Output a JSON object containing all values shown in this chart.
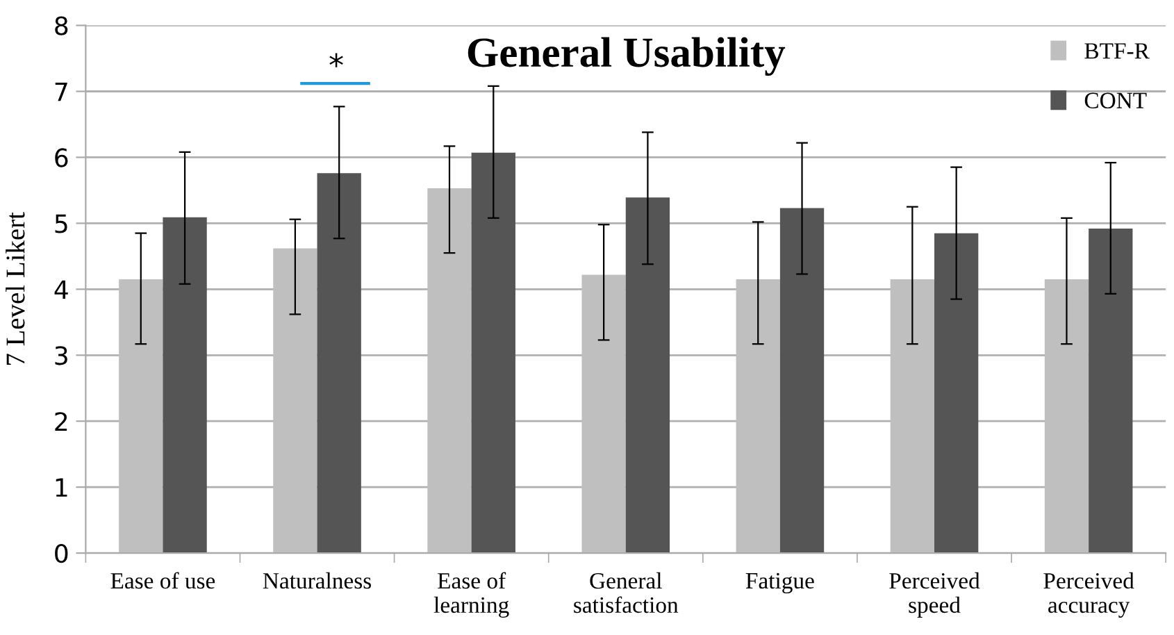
{
  "chart_data": {
    "type": "bar",
    "title": "General Usability",
    "ylabel": "7 Level Likert",
    "categories": [
      "Ease of use",
      "Naturalness",
      "Ease of\nlearning",
      "General\nsatisfaction",
      "Fatigue",
      "Perceived\nspeed",
      "Perceived\naccuracy"
    ],
    "series": [
      {
        "name": "BTF-R",
        "color": "#bfbfbf",
        "values": [
          4.15,
          4.62,
          5.53,
          4.22,
          4.15,
          4.15,
          4.15
        ],
        "errors": [
          [
            3.17,
            4.85
          ],
          [
            3.62,
            5.06
          ],
          [
            4.55,
            6.17
          ],
          [
            3.23,
            4.98
          ],
          [
            3.17,
            5.02
          ],
          [
            3.17,
            5.25
          ],
          [
            3.17,
            5.08
          ]
        ]
      },
      {
        "name": "CONT",
        "color": "#555555",
        "values": [
          5.09,
          5.76,
          6.07,
          5.39,
          5.23,
          4.85,
          4.92
        ],
        "errors": [
          [
            4.08,
            6.08
          ],
          [
            4.77,
            6.77
          ],
          [
            5.08,
            7.08
          ],
          [
            4.38,
            6.38
          ],
          [
            4.23,
            6.22
          ],
          [
            3.85,
            5.85
          ],
          [
            3.93,
            5.92
          ]
        ]
      }
    ],
    "ylim": [
      0,
      8
    ],
    "yticks": [
      0,
      1,
      2,
      3,
      4,
      5,
      6,
      7,
      8
    ],
    "grid": "y",
    "legend": "top right",
    "annotations": [
      "*"
    ]
  }
}
